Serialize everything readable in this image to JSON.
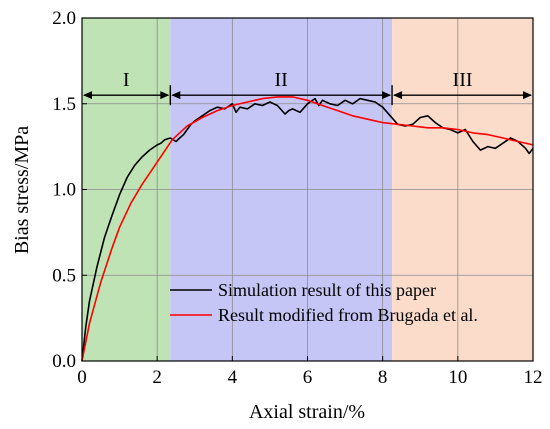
{
  "chart_data": {
    "type": "line",
    "xlabel": "Axial strain/%",
    "ylabel": "Bias stress/MPa",
    "xlim": [
      0,
      12
    ],
    "ylim": [
      0,
      2.0
    ],
    "x_ticks": [
      "0",
      "2",
      "4",
      "6",
      "8",
      "10",
      "12"
    ],
    "y_ticks": [
      "0.0",
      "0.5",
      "1.0",
      "1.5",
      "2.0"
    ],
    "grid": true,
    "legend_position": "bottom-right",
    "regions": [
      {
        "label": "I",
        "x_start": 0,
        "x_end": 2.35,
        "color": "#bfe3b4"
      },
      {
        "label": "II",
        "x_start": 2.35,
        "x_end": 8.25,
        "color": "#c6c6f6"
      },
      {
        "label": "III",
        "x_start": 8.25,
        "x_end": 12,
        "color": "#fbdccb"
      }
    ],
    "region_arrow_y": 1.55,
    "series": [
      {
        "name": "Simulation result of this paper",
        "color": "#000000",
        "x": [
          0,
          0.1,
          0.2,
          0.4,
          0.6,
          0.8,
          1.0,
          1.2,
          1.4,
          1.6,
          1.8,
          2.0,
          2.1,
          2.2,
          2.35,
          2.5,
          2.6,
          2.7,
          2.8,
          2.9,
          3.0,
          3.2,
          3.4,
          3.6,
          3.8,
          4.0,
          4.1,
          4.2,
          4.4,
          4.6,
          4.8,
          5.0,
          5.1,
          5.2,
          5.4,
          5.5,
          5.6,
          5.8,
          6.0,
          6.2,
          6.3,
          6.4,
          6.6,
          6.8,
          7.0,
          7.2,
          7.4,
          7.6,
          7.8,
          8.0,
          8.2,
          8.4,
          8.6,
          8.8,
          9.0,
          9.2,
          9.4,
          9.6,
          9.8,
          10.0,
          10.2,
          10.4,
          10.6,
          10.8,
          11.0,
          11.2,
          11.4,
          11.6,
          11.8,
          11.9,
          12.0
        ],
        "values": [
          0,
          0.2,
          0.35,
          0.55,
          0.72,
          0.85,
          0.97,
          1.07,
          1.14,
          1.19,
          1.23,
          1.26,
          1.27,
          1.29,
          1.3,
          1.28,
          1.3,
          1.32,
          1.35,
          1.38,
          1.4,
          1.43,
          1.46,
          1.48,
          1.47,
          1.5,
          1.45,
          1.48,
          1.47,
          1.5,
          1.49,
          1.51,
          1.5,
          1.49,
          1.44,
          1.46,
          1.47,
          1.45,
          1.5,
          1.53,
          1.49,
          1.52,
          1.5,
          1.49,
          1.52,
          1.5,
          1.53,
          1.52,
          1.51,
          1.48,
          1.43,
          1.38,
          1.37,
          1.38,
          1.42,
          1.43,
          1.39,
          1.36,
          1.35,
          1.33,
          1.35,
          1.28,
          1.23,
          1.25,
          1.24,
          1.27,
          1.3,
          1.28,
          1.24,
          1.21,
          1.24
        ]
      },
      {
        "name": "Result modified from Brugada et al.",
        "color": "#ff0000",
        "x": [
          0,
          0.2,
          0.5,
          0.8,
          1.0,
          1.3,
          1.6,
          2.0,
          2.4,
          2.8,
          3.2,
          3.6,
          4.0,
          4.4,
          4.8,
          5.2,
          5.6,
          6.0,
          6.4,
          6.8,
          7.2,
          7.6,
          8.0,
          8.4,
          8.8,
          9.2,
          9.6,
          10.0,
          10.4,
          10.8,
          11.2,
          11.6,
          12.0
        ],
        "values": [
          0,
          0.22,
          0.46,
          0.66,
          0.78,
          0.92,
          1.03,
          1.16,
          1.29,
          1.37,
          1.42,
          1.46,
          1.49,
          1.51,
          1.53,
          1.54,
          1.54,
          1.52,
          1.49,
          1.46,
          1.43,
          1.41,
          1.39,
          1.38,
          1.37,
          1.36,
          1.36,
          1.35,
          1.33,
          1.32,
          1.3,
          1.28,
          1.26
        ]
      }
    ]
  }
}
